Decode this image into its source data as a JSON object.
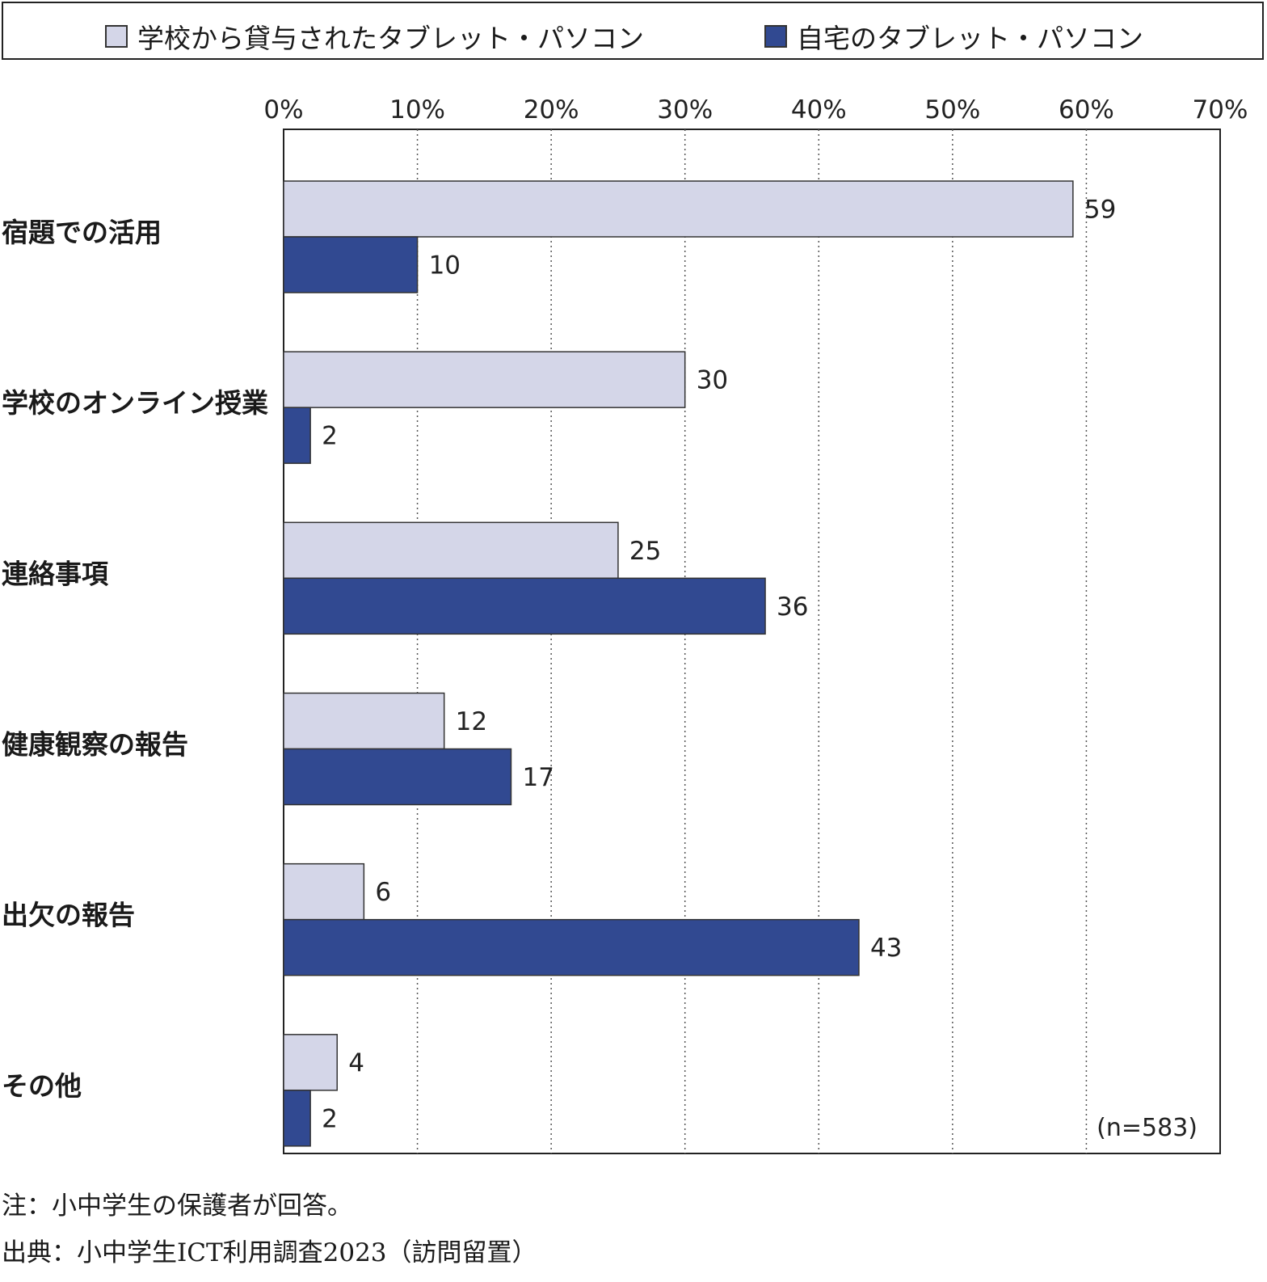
{
  "legend": {
    "items": [
      {
        "label": "学校から貸与されたタブレット・パソコン",
        "color": "#d4d6e8"
      },
      {
        "label": "自宅のタブレット・パソコン",
        "color": "#314991"
      }
    ]
  },
  "chart_data": {
    "type": "bar",
    "orientation": "horizontal",
    "categories": [
      "宿題での活用",
      "学校のオンライン授業",
      "連絡事項",
      "健康観察の報告",
      "出欠の報告",
      "その他"
    ],
    "series": [
      {
        "name": "学校から貸与されたタブレット・パソコン",
        "color": "#d4d6e8",
        "values": [
          59,
          30,
          25,
          12,
          6,
          4
        ]
      },
      {
        "name": "自宅のタブレット・パソコン",
        "color": "#314991",
        "values": [
          10,
          2,
          36,
          17,
          43,
          2
        ]
      }
    ],
    "xlim": [
      0,
      70
    ],
    "xticks": [
      "0%",
      "10%",
      "20%",
      "30%",
      "40%",
      "50%",
      "60%",
      "70%"
    ],
    "grid": "vertical-dotted",
    "legend_position": "top",
    "annotation": "(n=583)"
  },
  "notes": {
    "note": "注：小中学生の保護者が回答。",
    "source": "出典：小中学生ICT利用調査2023（訪問留置）"
  }
}
